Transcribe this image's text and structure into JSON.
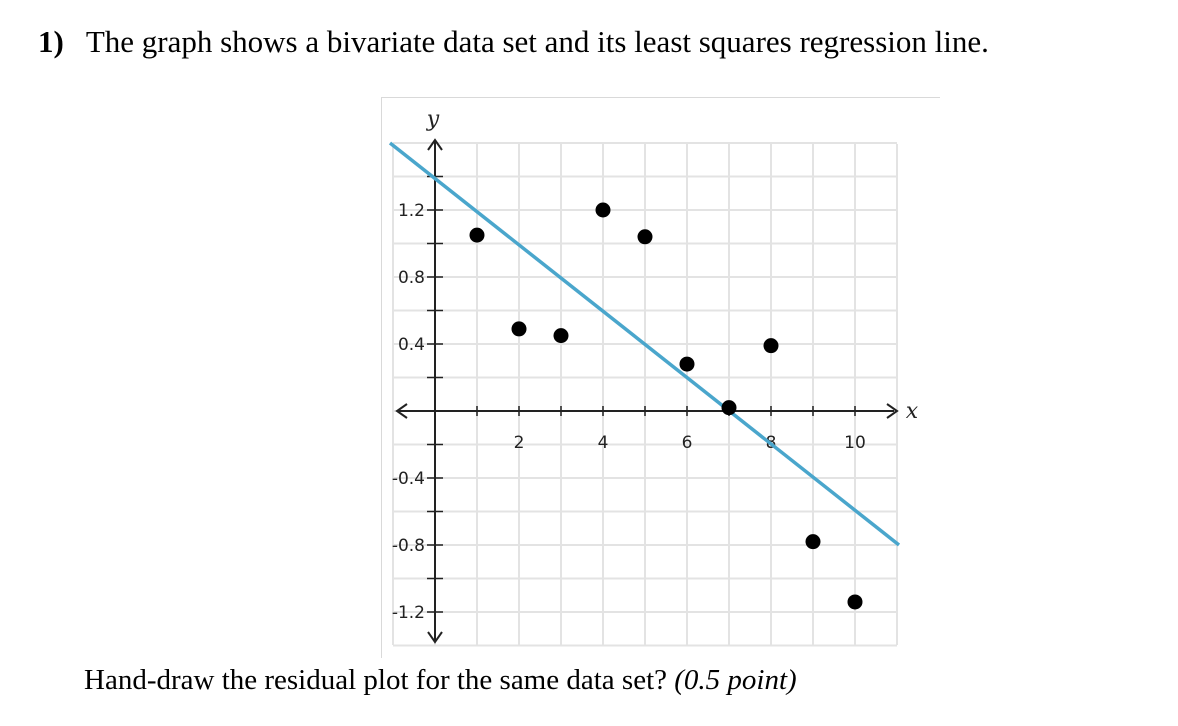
{
  "question": {
    "number": "1)",
    "text": "The graph shows a bivariate data set and its least squares regression line."
  },
  "footer": {
    "text": "Hand-draw the residual plot for the same data set? ",
    "points": "(0.5 point)"
  },
  "chart_data": {
    "type": "scatter",
    "xlabel": "x",
    "ylabel": "y",
    "xlim": [
      -1,
      11
    ],
    "ylim": [
      -1.35,
      1.6
    ],
    "x_ticks": [
      {
        "value": 2,
        "label": "2"
      },
      {
        "value": 4,
        "label": "4"
      },
      {
        "value": 6,
        "label": "6"
      },
      {
        "value": 8,
        "label": "8"
      },
      {
        "value": 10,
        "label": "10"
      }
    ],
    "y_ticks": [
      {
        "value": 1.2,
        "label": "1.2"
      },
      {
        "value": 0.8,
        "label": "0.8"
      },
      {
        "value": 0.4,
        "label": "0.4"
      },
      {
        "value": -0.4,
        "label": "-0.4"
      },
      {
        "value": -0.8,
        "label": "-0.8"
      },
      {
        "value": -1.2,
        "label": "-1.2"
      }
    ],
    "grid": true,
    "points": [
      {
        "x": 1,
        "y": 1.05
      },
      {
        "x": 2,
        "y": 0.49
      },
      {
        "x": 3,
        "y": 0.45
      },
      {
        "x": 4,
        "y": 1.2
      },
      {
        "x": 5,
        "y": 1.04
      },
      {
        "x": 6,
        "y": 0.28
      },
      {
        "x": 7,
        "y": 0.02
      },
      {
        "x": 8,
        "y": 0.39
      },
      {
        "x": 9,
        "y": -0.78
      },
      {
        "x": 10,
        "y": -1.14
      }
    ],
    "regression_line": {
      "x": [
        -1,
        11
      ],
      "y": [
        1.6,
        -0.8
      ],
      "color": "#4aa6cc"
    },
    "colors": {
      "points": "#000000",
      "grid": "#e3e3e3",
      "axis": "#222222"
    }
  }
}
